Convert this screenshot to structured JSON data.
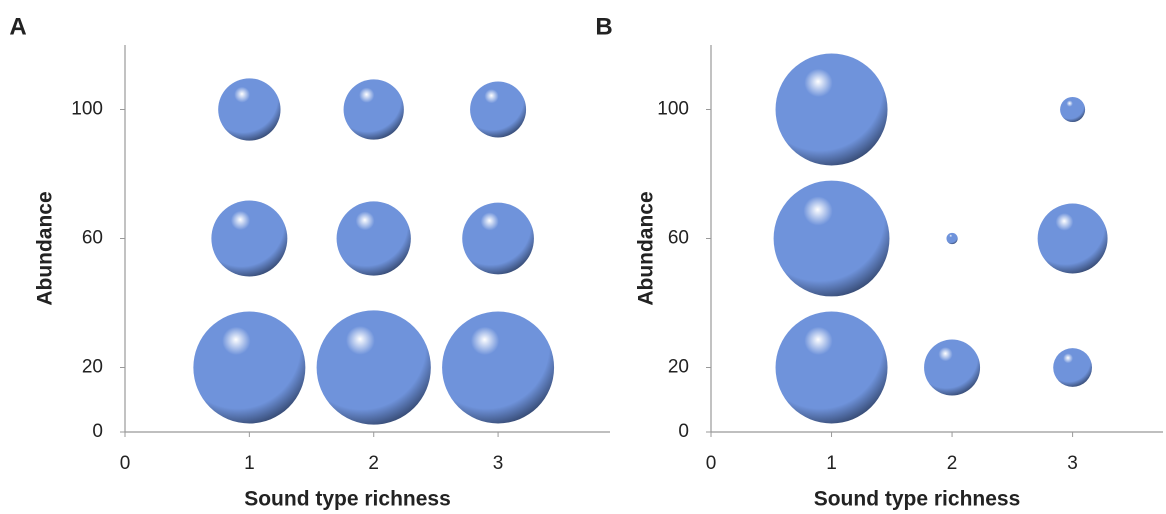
{
  "chart_data": [
    {
      "type": "bubble",
      "panel_label": "A",
      "x_label": "Sound type richness",
      "y_label": "Abundance",
      "xlim": [
        0,
        3.9
      ],
      "ylim": [
        0,
        120
      ],
      "xticks": [
        0,
        1,
        2,
        3
      ],
      "yticks": [
        0,
        20,
        60,
        100
      ],
      "series": [
        {
          "color": "#6f93db",
          "x": [
            1,
            2,
            3,
            1,
            2,
            3,
            1,
            2,
            3
          ],
          "values": [
            100,
            100,
            100,
            60,
            60,
            60,
            20,
            20,
            20
          ],
          "sizes": [
            31,
            29,
            25,
            46,
            44,
            41,
            100,
            104,
            100
          ]
        }
      ]
    },
    {
      "type": "bubble",
      "panel_label": "B",
      "x_label": "Sound type richness",
      "y_label": "Abundance",
      "xlim": [
        0,
        3.75
      ],
      "ylim": [
        0,
        120
      ],
      "xticks": [
        0,
        1,
        2,
        3
      ],
      "yticks": [
        0,
        20,
        60,
        100
      ],
      "series": [
        {
          "color": "#6f93db",
          "x": [
            1,
            3,
            1,
            2,
            3,
            1,
            2,
            3
          ],
          "values": [
            100,
            100,
            60,
            60,
            60,
            20,
            20,
            20
          ],
          "sizes": [
            100,
            5,
            107,
            1,
            39,
            100,
            25,
            12
          ]
        }
      ]
    }
  ]
}
